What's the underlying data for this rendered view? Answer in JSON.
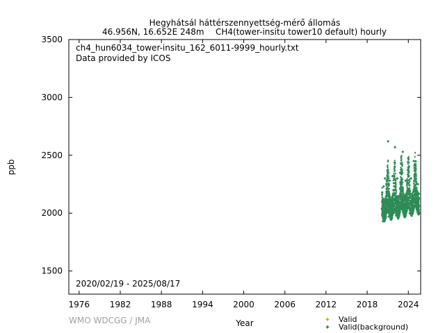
{
  "header": {
    "station": "Hegyhátsál háttérszennyettség-mérő állomás",
    "location": "46.956N, 16.652E 248m",
    "series_desc": "CH4(tower-insitu tower10 default) hourly"
  },
  "annotations": {
    "filename": "ch4_hun6034_tower-insitu_162_6011-9999_hourly.txt",
    "provider": "Data provided by ICOS",
    "date_range": "2020/02/19 - 2025/08/17"
  },
  "credit": "WMO WDCGG / JMA",
  "colors": {
    "valid": "#d4b000",
    "background": "#2e8b57"
  },
  "chart_data": {
    "type": "scatter",
    "title": "Hegyhátsál háttérszennyettség-mérő állomás",
    "xlabel": "Year",
    "ylabel": "ppb",
    "xlim": [
      1974.5,
      2025.8
    ],
    "ylim": [
      1300,
      3500
    ],
    "x_ticks": [
      1976,
      1982,
      1988,
      1994,
      2000,
      2006,
      2012,
      2018,
      2024
    ],
    "y_ticks": [
      1500,
      2000,
      2500,
      3000,
      3500
    ],
    "grid": false,
    "legend_position": "bottom-right",
    "legend": [
      "Valid",
      "Valid(background)"
    ],
    "series": [
      {
        "name": "Valid",
        "points": []
      },
      {
        "name": "Valid(background)",
        "points": [
          [
            2020.14,
            2040
          ],
          [
            2020.2,
            2180
          ],
          [
            2020.3,
            1930
          ],
          [
            2020.4,
            2230
          ],
          [
            2020.5,
            2000
          ],
          [
            2020.6,
            2300
          ],
          [
            2020.7,
            1960
          ],
          [
            2020.8,
            2250
          ],
          [
            2020.9,
            2100
          ],
          [
            2021.0,
            2350
          ],
          [
            2021.05,
            2620
          ],
          [
            2021.15,
            1970
          ],
          [
            2021.3,
            2280
          ],
          [
            2021.5,
            2050
          ],
          [
            2021.7,
            2320
          ],
          [
            2021.9,
            2000
          ],
          [
            2022.0,
            2400
          ],
          [
            2022.05,
            2570
          ],
          [
            2022.2,
            1980
          ],
          [
            2022.4,
            2300
          ],
          [
            2022.6,
            2040
          ],
          [
            2022.8,
            2350
          ],
          [
            2023.0,
            2100
          ],
          [
            2023.1,
            2420
          ],
          [
            2023.2,
            2530
          ],
          [
            2023.4,
            1990
          ],
          [
            2023.6,
            2280
          ],
          [
            2023.8,
            2050
          ],
          [
            2024.0,
            2380
          ],
          [
            2024.2,
            2000
          ],
          [
            2024.4,
            2300
          ],
          [
            2024.6,
            2100
          ],
          [
            2024.8,
            2450
          ],
          [
            2025.0,
            2200
          ],
          [
            2025.2,
            2050
          ],
          [
            2025.4,
            2250
          ],
          [
            2025.6,
            2000
          ]
        ]
      }
    ]
  }
}
